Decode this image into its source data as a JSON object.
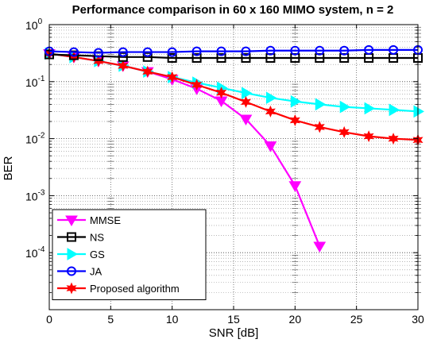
{
  "chart_data": {
    "type": "line",
    "title": "Performance comparison in 60 x 160 MIMO system, n = 2",
    "xlabel": "SNR [dB]",
    "ylabel": "BER",
    "xlim": [
      0,
      30
    ],
    "ylim": [
      1e-05,
      1
    ],
    "yscale": "log",
    "grid": true,
    "legend_position": "bottom-left",
    "x_ticks": [
      0,
      5,
      10,
      15,
      20,
      25,
      30
    ],
    "x_tick_labels": [
      "0",
      "5",
      "10",
      "15",
      "20",
      "25",
      "30"
    ],
    "y_ticks": [
      {
        "value": 1,
        "base": "10",
        "exp": "0"
      },
      {
        "value": 0.1,
        "base": "10",
        "exp": "-1"
      },
      {
        "value": 0.01,
        "base": "10",
        "exp": "-2"
      },
      {
        "value": 0.001,
        "base": "10",
        "exp": "-3"
      },
      {
        "value": 0.0001,
        "base": "10",
        "exp": "-4"
      }
    ],
    "series": [
      {
        "name": "MMSE",
        "color": "#ff00ff",
        "marker": "triangle-down",
        "x": [
          0,
          2,
          4,
          6,
          8,
          10,
          12,
          14,
          16,
          18,
          20,
          22
        ],
        "y": [
          0.31,
          0.27,
          0.23,
          0.19,
          0.15,
          0.11,
          0.075,
          0.046,
          0.022,
          0.0075,
          0.0015,
          0.00013
        ]
      },
      {
        "name": "NS",
        "color": "#000000",
        "marker": "square",
        "x": [
          0,
          2,
          4,
          6,
          8,
          10,
          12,
          14,
          16,
          18,
          20,
          22,
          24,
          26,
          28,
          30
        ],
        "y": [
          0.3,
          0.29,
          0.28,
          0.27,
          0.27,
          0.26,
          0.26,
          0.26,
          0.26,
          0.26,
          0.26,
          0.26,
          0.26,
          0.26,
          0.26,
          0.26
        ]
      },
      {
        "name": "GS",
        "color": "#00ffff",
        "marker": "triangle-right",
        "x": [
          0,
          2,
          4,
          6,
          8,
          10,
          12,
          14,
          16,
          18,
          20,
          22,
          24,
          26,
          28,
          30
        ],
        "y": [
          0.31,
          0.27,
          0.23,
          0.19,
          0.15,
          0.12,
          0.096,
          0.078,
          0.063,
          0.052,
          0.045,
          0.04,
          0.036,
          0.034,
          0.032,
          0.03
        ]
      },
      {
        "name": "JA",
        "color": "#0000ff",
        "marker": "circle",
        "x": [
          0,
          2,
          4,
          6,
          8,
          10,
          12,
          14,
          16,
          18,
          20,
          22,
          24,
          26,
          28,
          30
        ],
        "y": [
          0.34,
          0.33,
          0.32,
          0.33,
          0.33,
          0.33,
          0.34,
          0.34,
          0.34,
          0.35,
          0.35,
          0.35,
          0.35,
          0.36,
          0.36,
          0.36
        ]
      },
      {
        "name": "Proposed algorithm",
        "color": "#ff0000",
        "marker": "hexagram",
        "x": [
          0,
          2,
          4,
          6,
          8,
          10,
          12,
          14,
          16,
          18,
          20,
          22,
          24,
          26,
          28,
          30
        ],
        "y": [
          0.31,
          0.27,
          0.23,
          0.19,
          0.15,
          0.12,
          0.088,
          0.064,
          0.044,
          0.03,
          0.021,
          0.016,
          0.013,
          0.011,
          0.01,
          0.0095
        ]
      }
    ]
  }
}
